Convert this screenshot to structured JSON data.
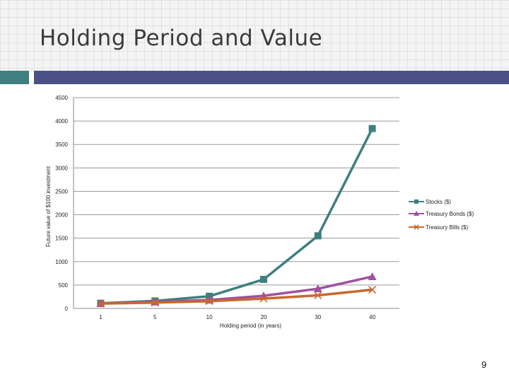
{
  "slide": {
    "title": "Holding Period and Value",
    "page_number": "9",
    "colors": {
      "accent_teal": "#3f7f7f",
      "accent_navy": "#4b5086"
    }
  },
  "chart_data": {
    "type": "line",
    "title": "",
    "xlabel": "Holding period (in years)",
    "ylabel": "Future value of $100 investment",
    "categories": [
      "1",
      "5",
      "10",
      "20",
      "30",
      "40"
    ],
    "ylim": [
      0,
      4500
    ],
    "yticks": [
      0,
      500,
      1000,
      1500,
      2000,
      2500,
      3000,
      3500,
      4000,
      4500
    ],
    "grid": true,
    "legend_position": "right",
    "series": [
      {
        "name": "Stocks ($)",
        "color": "#3f7f7f",
        "marker": "square",
        "values": [
          110,
          160,
          260,
          620,
          1550,
          3840
        ]
      },
      {
        "name": "Treasury Bonds ($)",
        "color": "#a050a0",
        "marker": "triangle",
        "values": [
          105,
          140,
          180,
          270,
          420,
          680
        ]
      },
      {
        "name": "Treasury Bills ($)",
        "color": "#c8682c",
        "marker": "x",
        "values": [
          103,
          125,
          155,
          210,
          280,
          400
        ]
      }
    ]
  }
}
